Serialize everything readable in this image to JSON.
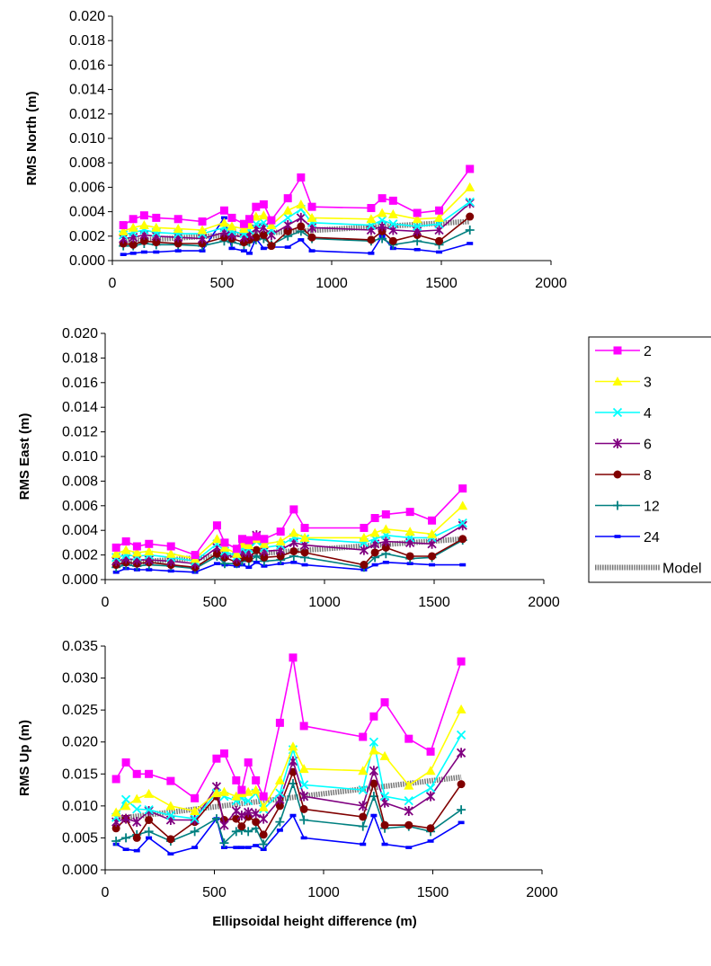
{
  "chart_data": [
    {
      "type": "line",
      "ylabel": "RMS North (m)",
      "xlabel": "",
      "xlim": [
        0,
        2000
      ],
      "ylim": [
        0,
        0.02
      ],
      "xticks": [
        "0",
        "500",
        "1000",
        "1500",
        "2000"
      ],
      "yticks": [
        "0.000",
        "0.002",
        "0.004",
        "0.006",
        "0.008",
        "0.010",
        "0.012",
        "0.014",
        "0.016",
        "0.018",
        "0.020"
      ],
      "x": [
        50,
        95,
        145,
        200,
        300,
        410,
        510,
        545,
        600,
        625,
        655,
        690,
        725,
        800,
        860,
        910,
        1180,
        1230,
        1280,
        1390,
        1490,
        1630
      ],
      "series": [
        {
          "name": "2",
          "values": [
            0.0029,
            0.0034,
            0.0037,
            0.0035,
            0.0034,
            0.0032,
            0.0041,
            0.0035,
            0.003,
            0.0034,
            0.0044,
            0.0046,
            0.0033,
            0.0051,
            0.0068,
            0.0044,
            0.0043,
            0.0051,
            0.0049,
            0.0039,
            0.0041,
            0.0075
          ]
        },
        {
          "name": "3",
          "values": [
            0.0024,
            0.0027,
            0.0029,
            0.0027,
            0.0026,
            0.0025,
            0.0031,
            0.0028,
            0.0026,
            0.0029,
            0.0036,
            0.0037,
            0.0029,
            0.0041,
            0.0046,
            0.0035,
            0.0034,
            0.0039,
            0.0038,
            0.0034,
            0.0035,
            0.006
          ]
        },
        {
          "name": "4",
          "values": [
            0.0021,
            0.0023,
            0.0025,
            0.0023,
            0.0022,
            0.0022,
            0.0027,
            0.0024,
            0.0022,
            0.0025,
            0.003,
            0.0031,
            0.0025,
            0.0035,
            0.0042,
            0.0031,
            0.0029,
            0.0033,
            0.003,
            0.0028,
            0.003,
            0.0048
          ]
        },
        {
          "name": "6",
          "values": [
            0.0018,
            0.0019,
            0.0021,
            0.002,
            0.0019,
            0.0018,
            0.0023,
            0.0021,
            0.0019,
            0.0021,
            0.0026,
            0.0027,
            0.0021,
            0.0029,
            0.0035,
            0.0027,
            0.0025,
            0.0028,
            0.0025,
            0.0024,
            0.0025,
            0.0047
          ]
        },
        {
          "name": "8",
          "values": [
            0.0014,
            0.0013,
            0.0016,
            0.0015,
            0.0014,
            0.0014,
            0.0019,
            0.0018,
            0.0015,
            0.0017,
            0.0019,
            0.0021,
            0.0012,
            0.0024,
            0.0028,
            0.0019,
            0.0017,
            0.0024,
            0.0016,
            0.0021,
            0.0016,
            0.0036
          ]
        },
        {
          "name": "12",
          "values": [
            0.0012,
            0.0012,
            0.0014,
            0.0013,
            0.0013,
            0.0012,
            0.0016,
            0.0015,
            0.0013,
            0.0015,
            0.0017,
            0.0018,
            0.0013,
            0.002,
            0.0024,
            0.0018,
            0.0016,
            0.0018,
            0.0013,
            0.0016,
            0.0013,
            0.0025
          ]
        },
        {
          "name": "24",
          "values": [
            0.0005,
            0.0006,
            0.0007,
            0.0007,
            0.0008,
            0.0008,
            0.0035,
            0.001,
            0.0008,
            0.0006,
            0.0018,
            0.001,
            0.0011,
            0.0011,
            0.0017,
            0.0008,
            0.0006,
            0.002,
            0.001,
            0.0009,
            0.0007,
            0.0014
          ]
        },
        {
          "name": "Model",
          "x": [
            50,
            1630
          ],
          "values": [
            0.0016,
            0.0032
          ]
        }
      ]
    },
    {
      "type": "line",
      "ylabel": "RMS East (m)",
      "xlabel": "",
      "xlim": [
        0,
        2000
      ],
      "ylim": [
        0,
        0.02
      ],
      "xticks": [
        "0",
        "500",
        "1000",
        "1500",
        "2000"
      ],
      "yticks": [
        "0.000",
        "0.002",
        "0.004",
        "0.006",
        "0.008",
        "0.010",
        "0.012",
        "0.014",
        "0.016",
        "0.018",
        "0.020"
      ],
      "x": [
        50,
        95,
        145,
        200,
        300,
        410,
        510,
        545,
        600,
        625,
        655,
        690,
        725,
        800,
        860,
        910,
        1180,
        1230,
        1280,
        1390,
        1490,
        1630
      ],
      "series": [
        {
          "name": "2",
          "values": [
            0.0026,
            0.0031,
            0.0027,
            0.0029,
            0.0027,
            0.002,
            0.0044,
            0.003,
            0.0025,
            0.0033,
            0.0032,
            0.0035,
            0.0033,
            0.0039,
            0.0057,
            0.0042,
            0.0042,
            0.005,
            0.0053,
            0.0055,
            0.0048,
            0.0074
          ]
        },
        {
          "name": "3",
          "values": [
            0.0021,
            0.0024,
            0.0022,
            0.0023,
            0.0021,
            0.0017,
            0.0033,
            0.0026,
            0.0021,
            0.0029,
            0.0028,
            0.0033,
            0.0029,
            0.0031,
            0.0038,
            0.0034,
            0.0034,
            0.0038,
            0.0041,
            0.0039,
            0.0037,
            0.006
          ]
        },
        {
          "name": "4",
          "values": [
            0.0018,
            0.002,
            0.0019,
            0.002,
            0.0018,
            0.0015,
            0.0029,
            0.0023,
            0.0019,
            0.0025,
            0.0025,
            0.0031,
            0.0026,
            0.0028,
            0.0034,
            0.0033,
            0.003,
            0.0033,
            0.0036,
            0.0034,
            0.0034,
            0.0046
          ]
        },
        {
          "name": "6",
          "values": [
            0.0015,
            0.0017,
            0.0016,
            0.0016,
            0.0015,
            0.0013,
            0.0026,
            0.0021,
            0.0017,
            0.0022,
            0.0022,
            0.0036,
            0.0023,
            0.0024,
            0.003,
            0.0028,
            0.0024,
            0.0029,
            0.0031,
            0.003,
            0.0029,
            0.0044
          ]
        },
        {
          "name": "8",
          "values": [
            0.0012,
            0.0014,
            0.0013,
            0.0014,
            0.0012,
            0.001,
            0.0021,
            0.0018,
            0.0014,
            0.0018,
            0.0017,
            0.0024,
            0.0018,
            0.0019,
            0.0023,
            0.0022,
            0.0012,
            0.0022,
            0.0026,
            0.0019,
            0.0019,
            0.0033
          ]
        },
        {
          "name": "12",
          "values": [
            0.001,
            0.0012,
            0.0011,
            0.0012,
            0.0011,
            0.0009,
            0.0019,
            0.0013,
            0.0013,
            0.0015,
            0.0015,
            0.0019,
            0.0015,
            0.0016,
            0.0019,
            0.0018,
            0.001,
            0.0018,
            0.0021,
            0.0017,
            0.0018,
            0.0032
          ]
        },
        {
          "name": "24",
          "values": [
            0.0006,
            0.0009,
            0.0008,
            0.0008,
            0.0007,
            0.0006,
            0.0013,
            0.0012,
            0.0011,
            0.0012,
            0.001,
            0.0014,
            0.0011,
            0.0013,
            0.0014,
            0.0012,
            0.0008,
            0.0012,
            0.0014,
            0.0013,
            0.0012,
            0.0012
          ]
        },
        {
          "name": "Model",
          "x": [
            50,
            1630
          ],
          "values": [
            0.0013,
            0.0033
          ]
        }
      ]
    },
    {
      "type": "line",
      "ylabel": "RMS Up (m)",
      "xlabel": "Ellipsoidal height difference (m)",
      "xlim": [
        0,
        2000
      ],
      "ylim": [
        0,
        0.035
      ],
      "xticks": [
        "0",
        "500",
        "1000",
        "1500",
        "2000"
      ],
      "yticks": [
        "0.000",
        "0.005",
        "0.010",
        "0.015",
        "0.020",
        "0.025",
        "0.030",
        "0.035"
      ],
      "x": [
        50,
        95,
        145,
        200,
        300,
        410,
        510,
        545,
        600,
        625,
        655,
        690,
        725,
        800,
        860,
        910,
        1180,
        1230,
        1280,
        1390,
        1490,
        1630
      ],
      "series": [
        {
          "name": "2",
          "values": [
            0.0142,
            0.0168,
            0.015,
            0.015,
            0.0139,
            0.0112,
            0.0174,
            0.0182,
            0.014,
            0.0125,
            0.0168,
            0.014,
            0.0115,
            0.023,
            0.0332,
            0.0225,
            0.0208,
            0.024,
            0.0262,
            0.0205,
            0.0185,
            0.0326
          ]
        },
        {
          "name": "3",
          "values": [
            0.009,
            0.01,
            0.0111,
            0.0119,
            0.01,
            0.0092,
            0.012,
            0.0122,
            0.0115,
            0.012,
            0.0122,
            0.0125,
            0.0098,
            0.014,
            0.0193,
            0.0158,
            0.0155,
            0.0187,
            0.0178,
            0.0132,
            0.0155,
            0.0251
          ]
        },
        {
          "name": "4",
          "values": [
            0.0082,
            0.011,
            0.0095,
            0.0094,
            0.0085,
            0.008,
            0.012,
            0.0115,
            0.0108,
            0.0112,
            0.0108,
            0.012,
            0.0095,
            0.012,
            0.0188,
            0.0133,
            0.0125,
            0.02,
            0.0115,
            0.0108,
            0.0128,
            0.0211
          ]
        },
        {
          "name": "6",
          "values": [
            0.0075,
            0.008,
            0.0075,
            0.0092,
            0.0078,
            0.0078,
            0.013,
            0.007,
            0.0092,
            0.0085,
            0.009,
            0.0088,
            0.008,
            0.011,
            0.017,
            0.0115,
            0.01,
            0.0155,
            0.0105,
            0.0092,
            0.0115,
            0.0183
          ]
        },
        {
          "name": "8",
          "values": [
            0.0065,
            0.008,
            0.005,
            0.0078,
            0.0048,
            0.0075,
            0.0115,
            0.0078,
            0.008,
            0.0068,
            0.0083,
            0.0075,
            0.0055,
            0.01,
            0.0153,
            0.0095,
            0.0083,
            0.0135,
            0.007,
            0.007,
            0.0065,
            0.0134
          ]
        },
        {
          "name": "12",
          "values": [
            0.0045,
            0.005,
            0.0055,
            0.006,
            0.0045,
            0.006,
            0.008,
            0.0042,
            0.006,
            0.0062,
            0.006,
            0.0065,
            0.004,
            0.0075,
            0.0135,
            0.0078,
            0.0068,
            0.0115,
            0.0065,
            0.0068,
            0.006,
            0.0094
          ]
        },
        {
          "name": "24",
          "values": [
            0.004,
            0.0032,
            0.003,
            0.005,
            0.0025,
            0.0035,
            0.008,
            0.0035,
            0.0035,
            0.0035,
            0.0035,
            0.0038,
            0.0032,
            0.0062,
            0.0085,
            0.005,
            0.004,
            0.0085,
            0.004,
            0.0035,
            0.0045,
            0.0074
          ]
        },
        {
          "name": "Model",
          "x": [
            50,
            1630
          ],
          "values": [
            0.008,
            0.0145
          ]
        }
      ]
    }
  ],
  "legend": {
    "entries": [
      {
        "name": "2",
        "color": "#ff00ff",
        "marker": "square"
      },
      {
        "name": "3",
        "color": "#ffff00",
        "marker": "triangle"
      },
      {
        "name": "4",
        "color": "#00ffff",
        "marker": "x"
      },
      {
        "name": "6",
        "color": "#800080",
        "marker": "star"
      },
      {
        "name": "8",
        "color": "#800000",
        "marker": "circle"
      },
      {
        "name": "12",
        "color": "#008080",
        "marker": "plus"
      },
      {
        "name": "24",
        "color": "#0000ff",
        "marker": "dash"
      },
      {
        "name": "Model",
        "color": "#888888",
        "marker": "none"
      }
    ]
  }
}
